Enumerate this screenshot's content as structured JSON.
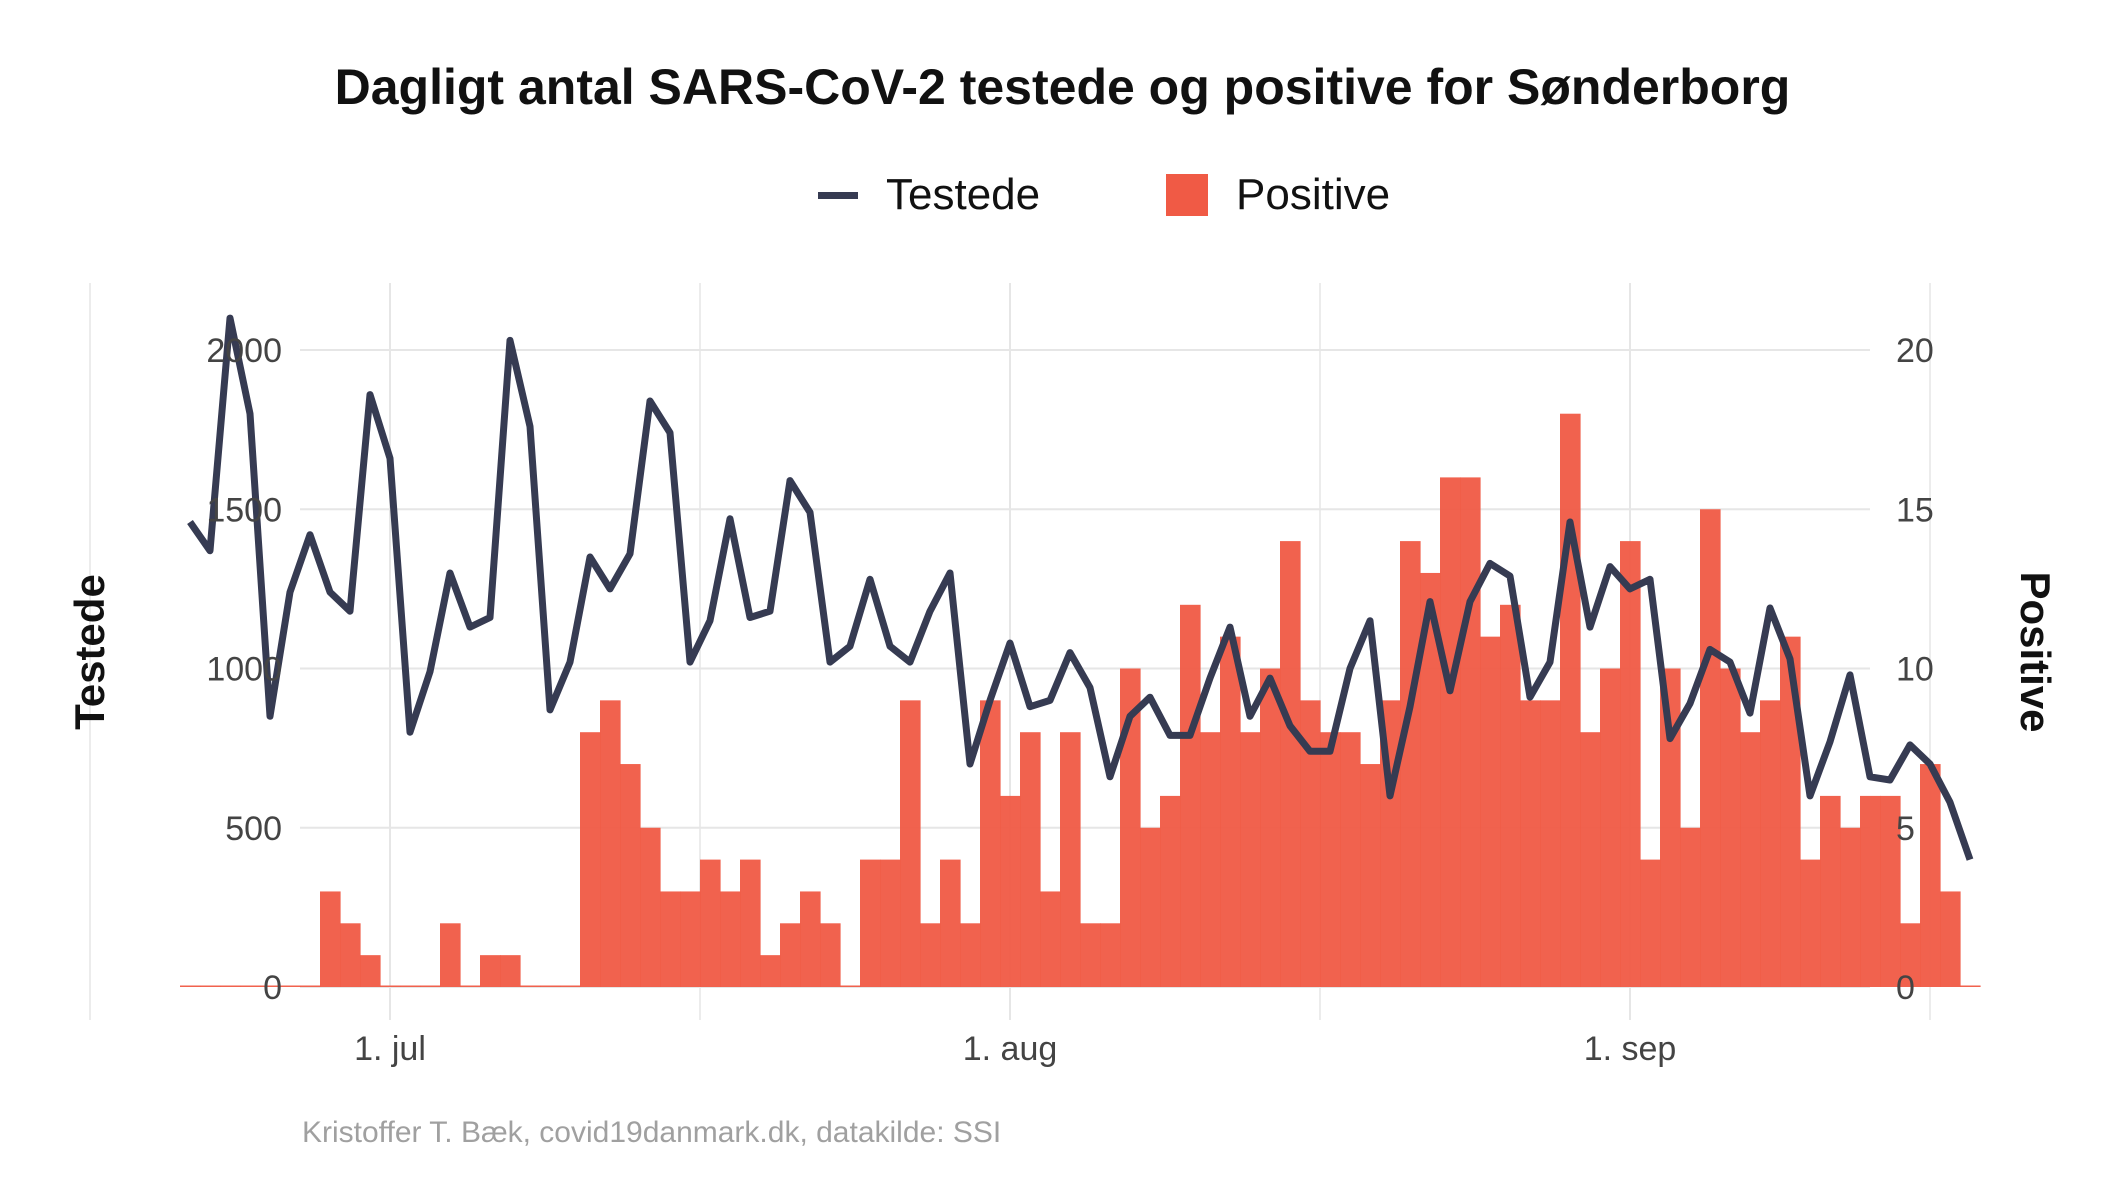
{
  "title": "Dagligt antal SARS-CoV-2 testede og positive for Sønderborg",
  "caption": "Kristoffer T. Bæk, covid19danmark.dk, datakilde: SSI",
  "legend": {
    "tested_label": "Testede",
    "positive_label": "Positive"
  },
  "colors": {
    "tested": "#363b52",
    "positive": "#f05a45",
    "grid": "#e6e6e6"
  },
  "chart_data": {
    "type": "bar+line",
    "start_date": "2020-06-21",
    "left_axis": {
      "label": "Testede",
      "range": [
        0,
        2200
      ],
      "ticks": [
        0,
        500,
        1000,
        1500,
        2000
      ]
    },
    "right_axis": {
      "label": "Positive",
      "range": [
        0,
        22
      ],
      "ticks": [
        0,
        5,
        10,
        15,
        20
      ]
    },
    "x_ticks": [
      {
        "label": "1. jul",
        "day": 10
      },
      {
        "label": "1. aug",
        "day": 41
      },
      {
        "label": "1. sep",
        "day": 72
      }
    ],
    "series": [
      {
        "name": "Testede",
        "kind": "line",
        "values": [
          1460,
          1370,
          2100,
          1800,
          850,
          1240,
          1420,
          1240,
          1180,
          1860,
          1660,
          800,
          990,
          1300,
          1130,
          1160,
          2030,
          1760,
          870,
          1020,
          1350,
          1250,
          1360,
          1840,
          1740,
          1020,
          1150,
          1470,
          1160,
          1180,
          1590,
          1490,
          1020,
          1070,
          1280,
          1070,
          1020,
          1180,
          1300,
          700,
          900,
          1080,
          880,
          900,
          1050,
          940,
          660,
          850,
          910,
          790,
          790,
          970,
          1130,
          850,
          970,
          820,
          740,
          740,
          1000,
          1150,
          600,
          880,
          1210,
          930,
          1210,
          1330,
          1290,
          910,
          1020,
          1460,
          1130,
          1320,
          1250,
          1280,
          780,
          890,
          1060,
          1020,
          860,
          1190,
          1030,
          600,
          770,
          980,
          660,
          650,
          760,
          700,
          580,
          400
        ]
      },
      {
        "name": "Positive",
        "kind": "bar",
        "values": [
          0,
          0,
          0,
          0,
          0,
          0,
          0,
          3,
          2,
          1,
          0,
          0,
          0,
          2,
          0,
          1,
          1,
          0,
          0,
          0,
          8,
          9,
          7,
          5,
          3,
          3,
          4,
          3,
          4,
          1,
          2,
          3,
          2,
          0,
          4,
          4,
          9,
          2,
          4,
          2,
          9,
          6,
          8,
          3,
          8,
          2,
          2,
          10,
          5,
          6,
          12,
          8,
          11,
          8,
          10,
          14,
          9,
          8,
          8,
          7,
          9,
          14,
          13,
          16,
          16,
          11,
          12,
          9,
          9,
          18,
          8,
          10,
          14,
          4,
          10,
          5,
          15,
          10,
          8,
          9,
          11,
          4,
          6,
          5,
          6,
          6,
          2,
          7,
          3,
          0
        ]
      }
    ]
  }
}
